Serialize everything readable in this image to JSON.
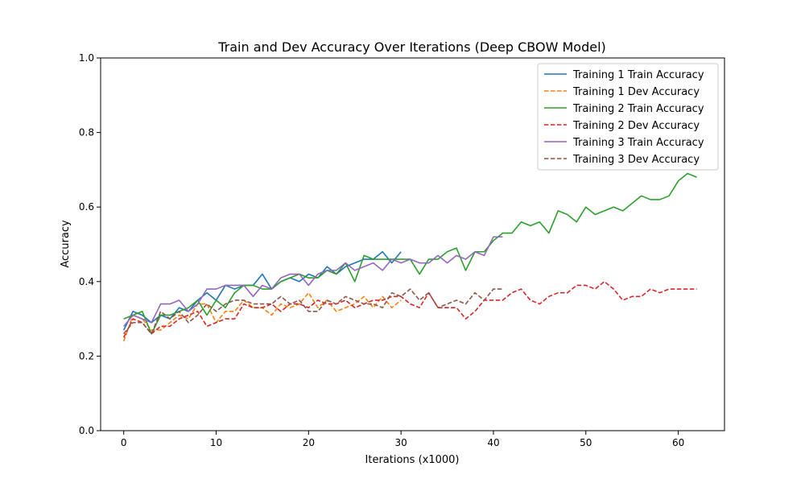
{
  "chart_data": {
    "type": "line",
    "title": "Train and Dev Accuracy Over Iterations (Deep CBOW Model)",
    "xlabel": "Iterations (x1000)",
    "ylabel": "Accuracy",
    "xlim": [
      -2.5,
      65
    ],
    "ylim": [
      0.0,
      1.0
    ],
    "xticks": [
      0,
      10,
      20,
      30,
      40,
      50,
      60
    ],
    "yticks": [
      0.0,
      0.2,
      0.4,
      0.6,
      0.8,
      1.0
    ],
    "xtick_labels": [
      "0",
      "10",
      "20",
      "30",
      "40",
      "50",
      "60"
    ],
    "ytick_labels": [
      "0.0",
      "0.2",
      "0.4",
      "0.6",
      "0.8",
      "1.0"
    ],
    "grid": false,
    "legend_position": "top-right",
    "series": [
      {
        "name": "Training 1 Train Accuracy",
        "color": "#1f77b4",
        "style": "solid",
        "x": [
          0,
          1,
          2,
          3,
          4,
          5,
          6,
          7,
          8,
          9,
          10,
          11,
          12,
          13,
          14,
          15,
          16,
          17,
          18,
          19,
          20,
          21,
          22,
          23,
          24,
          25,
          26,
          27,
          28,
          29,
          30
        ],
        "values": [
          0.27,
          0.32,
          0.31,
          0.29,
          0.31,
          0.3,
          0.33,
          0.32,
          0.35,
          0.37,
          0.35,
          0.39,
          0.38,
          0.39,
          0.39,
          0.42,
          0.38,
          0.4,
          0.41,
          0.4,
          0.42,
          0.41,
          0.44,
          0.42,
          0.44,
          0.45,
          0.46,
          0.46,
          0.48,
          0.45,
          0.48
        ]
      },
      {
        "name": "Training 1 Dev Accuracy",
        "color": "#ff7f0e",
        "style": "dashed",
        "x": [
          0,
          1,
          2,
          3,
          4,
          5,
          6,
          7,
          8,
          9,
          10,
          11,
          12,
          13,
          14,
          15,
          16,
          17,
          18,
          19,
          20,
          21,
          22,
          23,
          24,
          25,
          26,
          27,
          28,
          29,
          30
        ],
        "values": [
          0.24,
          0.31,
          0.3,
          0.27,
          0.27,
          0.29,
          0.31,
          0.3,
          0.34,
          0.34,
          0.29,
          0.32,
          0.32,
          0.35,
          0.33,
          0.33,
          0.31,
          0.34,
          0.33,
          0.34,
          0.37,
          0.33,
          0.35,
          0.32,
          0.33,
          0.34,
          0.36,
          0.33,
          0.36,
          0.33,
          0.35
        ]
      },
      {
        "name": "Training 2 Train Accuracy",
        "color": "#2ca02c",
        "style": "solid",
        "x": [
          0,
          1,
          2,
          3,
          4,
          5,
          6,
          7,
          8,
          9,
          10,
          11,
          12,
          13,
          14,
          15,
          16,
          17,
          18,
          19,
          20,
          21,
          22,
          23,
          24,
          25,
          26,
          27,
          28,
          29,
          30,
          31,
          32,
          33,
          34,
          35,
          36,
          37,
          38,
          39,
          40,
          41,
          42,
          43,
          44,
          45,
          46,
          47,
          48,
          49,
          50,
          51,
          52,
          53,
          54,
          55,
          56,
          57,
          58,
          59,
          60,
          61,
          62
        ],
        "values": [
          0.3,
          0.31,
          0.32,
          0.26,
          0.31,
          0.31,
          0.32,
          0.33,
          0.35,
          0.31,
          0.35,
          0.33,
          0.37,
          0.39,
          0.39,
          0.38,
          0.38,
          0.4,
          0.41,
          0.42,
          0.41,
          0.41,
          0.43,
          0.42,
          0.45,
          0.4,
          0.47,
          0.46,
          0.46,
          0.46,
          0.46,
          0.46,
          0.42,
          0.46,
          0.46,
          0.48,
          0.49,
          0.43,
          0.48,
          0.48,
          0.51,
          0.53,
          0.53,
          0.56,
          0.55,
          0.56,
          0.53,
          0.59,
          0.58,
          0.56,
          0.6,
          0.58,
          0.59,
          0.6,
          0.59,
          0.61,
          0.63,
          0.62,
          0.62,
          0.63,
          0.67,
          0.69,
          0.68
        ]
      },
      {
        "name": "Training 2 Dev Accuracy",
        "color": "#d62728",
        "style": "dashed",
        "x": [
          0,
          1,
          2,
          3,
          4,
          5,
          6,
          7,
          8,
          9,
          10,
          11,
          12,
          13,
          14,
          15,
          16,
          17,
          18,
          19,
          20,
          21,
          22,
          23,
          24,
          25,
          26,
          27,
          28,
          29,
          30,
          31,
          32,
          33,
          34,
          35,
          36,
          37,
          38,
          39,
          40,
          41,
          42,
          43,
          44,
          45,
          46,
          47,
          48,
          49,
          50,
          51,
          52,
          53,
          54,
          55,
          56,
          57,
          58,
          59,
          60,
          61,
          62
        ],
        "values": [
          0.25,
          0.3,
          0.29,
          0.26,
          0.28,
          0.28,
          0.3,
          0.31,
          0.32,
          0.28,
          0.29,
          0.3,
          0.3,
          0.34,
          0.33,
          0.33,
          0.34,
          0.32,
          0.34,
          0.34,
          0.33,
          0.35,
          0.34,
          0.34,
          0.35,
          0.33,
          0.34,
          0.35,
          0.35,
          0.36,
          0.36,
          0.34,
          0.33,
          0.37,
          0.33,
          0.33,
          0.33,
          0.3,
          0.32,
          0.35,
          0.35,
          0.35,
          0.37,
          0.38,
          0.35,
          0.34,
          0.36,
          0.37,
          0.37,
          0.39,
          0.39,
          0.38,
          0.4,
          0.38,
          0.35,
          0.36,
          0.36,
          0.38,
          0.37,
          0.38,
          0.38,
          0.38,
          0.38
        ]
      },
      {
        "name": "Training 3 Train Accuracy",
        "color": "#9467bd",
        "style": "solid",
        "x": [
          0,
          1,
          2,
          3,
          4,
          5,
          6,
          7,
          8,
          9,
          10,
          11,
          12,
          13,
          14,
          15,
          16,
          17,
          18,
          19,
          20,
          21,
          22,
          23,
          24,
          25,
          26,
          27,
          28,
          29,
          30,
          31,
          32,
          33,
          34,
          35,
          36,
          37,
          38,
          39,
          40,
          41
        ],
        "values": [
          0.28,
          0.31,
          0.3,
          0.29,
          0.34,
          0.34,
          0.35,
          0.32,
          0.34,
          0.38,
          0.38,
          0.39,
          0.39,
          0.39,
          0.36,
          0.39,
          0.38,
          0.41,
          0.42,
          0.42,
          0.39,
          0.42,
          0.43,
          0.43,
          0.45,
          0.43,
          0.44,
          0.45,
          0.43,
          0.46,
          0.45,
          0.46,
          0.45,
          0.45,
          0.47,
          0.45,
          0.47,
          0.46,
          0.48,
          0.47,
          0.52,
          0.52
        ]
      },
      {
        "name": "Training 3 Dev Accuracy",
        "color": "#8c564b",
        "style": "dashed",
        "x": [
          0,
          1,
          2,
          3,
          4,
          5,
          6,
          7,
          8,
          9,
          10,
          11,
          12,
          13,
          14,
          15,
          16,
          17,
          18,
          19,
          20,
          21,
          22,
          23,
          24,
          25,
          26,
          27,
          28,
          29,
          30,
          31,
          32,
          33,
          34,
          35,
          36,
          37,
          38,
          39,
          40,
          41
        ],
        "values": [
          0.26,
          0.29,
          0.29,
          0.26,
          0.32,
          0.3,
          0.32,
          0.29,
          0.31,
          0.34,
          0.32,
          0.34,
          0.35,
          0.35,
          0.34,
          0.34,
          0.34,
          0.36,
          0.34,
          0.35,
          0.32,
          0.32,
          0.35,
          0.34,
          0.36,
          0.35,
          0.34,
          0.34,
          0.33,
          0.37,
          0.36,
          0.38,
          0.35,
          0.37,
          0.33,
          0.34,
          0.35,
          0.34,
          0.37,
          0.35,
          0.38,
          0.38
        ]
      }
    ]
  }
}
